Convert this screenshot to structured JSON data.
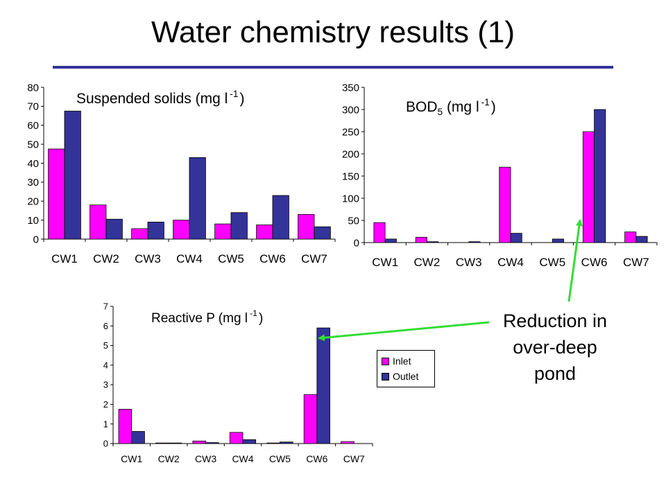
{
  "slide": {
    "title": "Water chemistry results (1)",
    "annotation_lines": [
      "Reduction in",
      "over-deep",
      "pond"
    ],
    "colors": {
      "inlet": "#FF00FF",
      "outlet": "#333399",
      "rule": "#333399",
      "arrow": "#33DD33"
    }
  },
  "legend": {
    "entries": [
      "Inlet",
      "Outlet"
    ]
  },
  "chart_data": [
    {
      "type": "bar",
      "title": "Suspended solids (mg l",
      "title_sup": "-1",
      "title_end": ")",
      "categories": [
        "CW1",
        "CW2",
        "CW3",
        "CW4",
        "CW5",
        "CW6",
        "CW7"
      ],
      "series": [
        {
          "name": "Inlet",
          "values": [
            47.5,
            18,
            5.5,
            10,
            8,
            7.5,
            13
          ]
        },
        {
          "name": "Outlet",
          "values": [
            67.5,
            10.5,
            9,
            43,
            14,
            23,
            6.5
          ]
        }
      ],
      "ylim": [
        0,
        80
      ],
      "yticks": [
        0,
        10,
        20,
        30,
        40,
        50,
        60,
        70,
        80
      ],
      "grid": false
    },
    {
      "type": "bar",
      "title": "BOD",
      "title_sub": "5",
      "title_mid": " (mg l",
      "title_sup": "-1",
      "title_end": ")",
      "categories": [
        "CW1",
        "CW2",
        "CW3",
        "CW4",
        "CW5",
        "CW6",
        "CW7"
      ],
      "series": [
        {
          "name": "Inlet",
          "values": [
            45,
            12,
            0,
            170,
            0,
            250,
            24
          ]
        },
        {
          "name": "Outlet",
          "values": [
            8,
            2,
            2,
            21,
            8,
            300,
            14
          ]
        }
      ],
      "ylim": [
        0,
        350
      ],
      "yticks": [
        0,
        50,
        100,
        150,
        200,
        250,
        300,
        350
      ],
      "grid": false
    },
    {
      "type": "bar",
      "title": "Reactive P (mg l",
      "title_sup": "-1",
      "title_end": ")",
      "categories": [
        "CW1",
        "CW2",
        "CW3",
        "CW4",
        "CW5",
        "CW6",
        "CW7"
      ],
      "series": [
        {
          "name": "Inlet",
          "values": [
            1.75,
            0.03,
            0.13,
            0.57,
            0.03,
            2.5,
            0.1
          ]
        },
        {
          "name": "Outlet",
          "values": [
            0.62,
            0.03,
            0.05,
            0.2,
            0.08,
            5.9,
            0
          ]
        }
      ],
      "ylim": [
        0,
        7
      ],
      "yticks": [
        0,
        1,
        2,
        3,
        4,
        5,
        6,
        7
      ],
      "grid": false
    }
  ]
}
